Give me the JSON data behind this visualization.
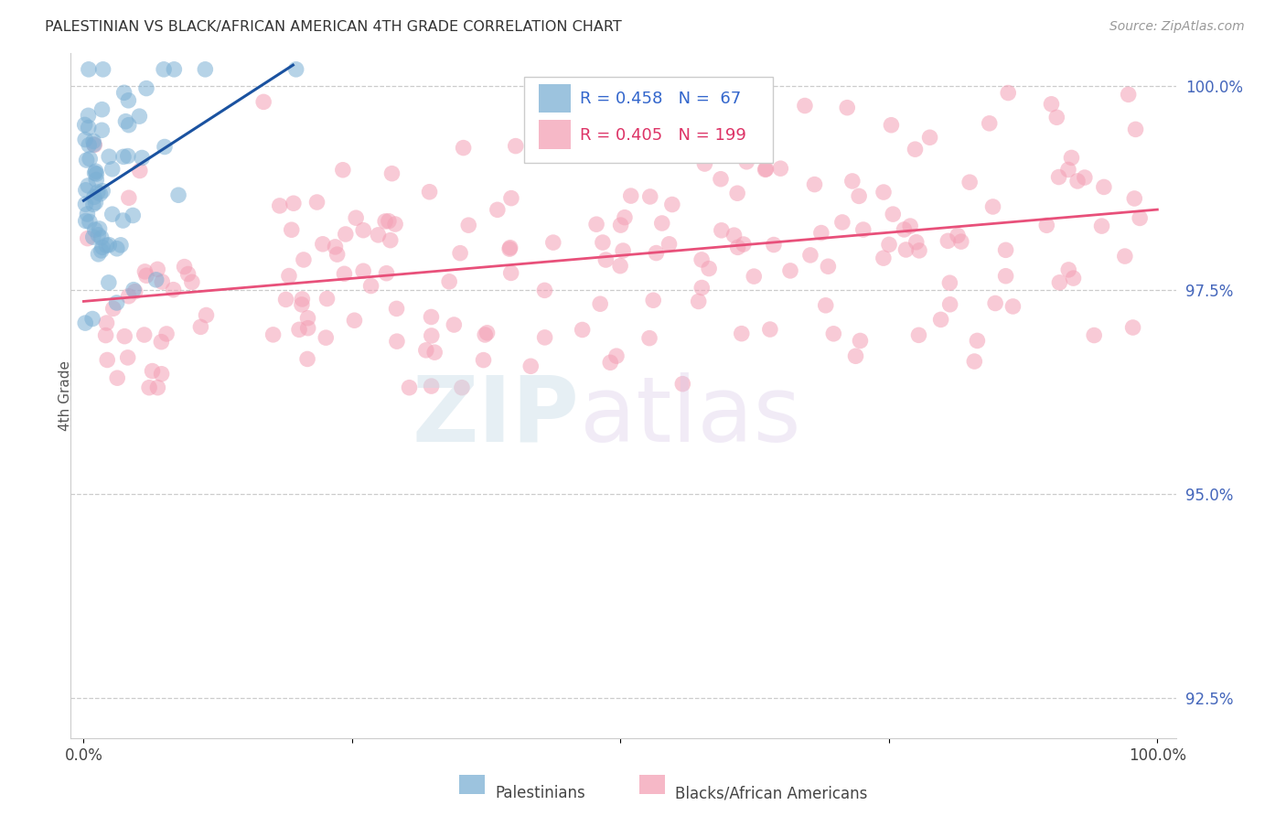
{
  "title": "PALESTINIAN VS BLACK/AFRICAN AMERICAN 4TH GRADE CORRELATION CHART",
  "source": "Source: ZipAtlas.com",
  "ylabel": "4th Grade",
  "blue_R": 0.458,
  "blue_N": 67,
  "pink_R": 0.405,
  "pink_N": 199,
  "blue_color": "#7BAFD4",
  "pink_color": "#F4A0B5",
  "blue_line_color": "#1A52A0",
  "pink_line_color": "#E8507A",
  "legend_label_blue": "Palestinians",
  "legend_label_pink": "Blacks/African Americans",
  "ylim_low": 0.92,
  "ylim_high": 1.004,
  "yticks": [
    0.925,
    0.95,
    0.975,
    1.0
  ],
  "ytick_labels": [
    "92.5%",
    "95.0%",
    "97.5%",
    "100.0%"
  ],
  "xtick_labels": [
    "0.0%",
    "",
    "",
    "",
    "100.0%"
  ]
}
